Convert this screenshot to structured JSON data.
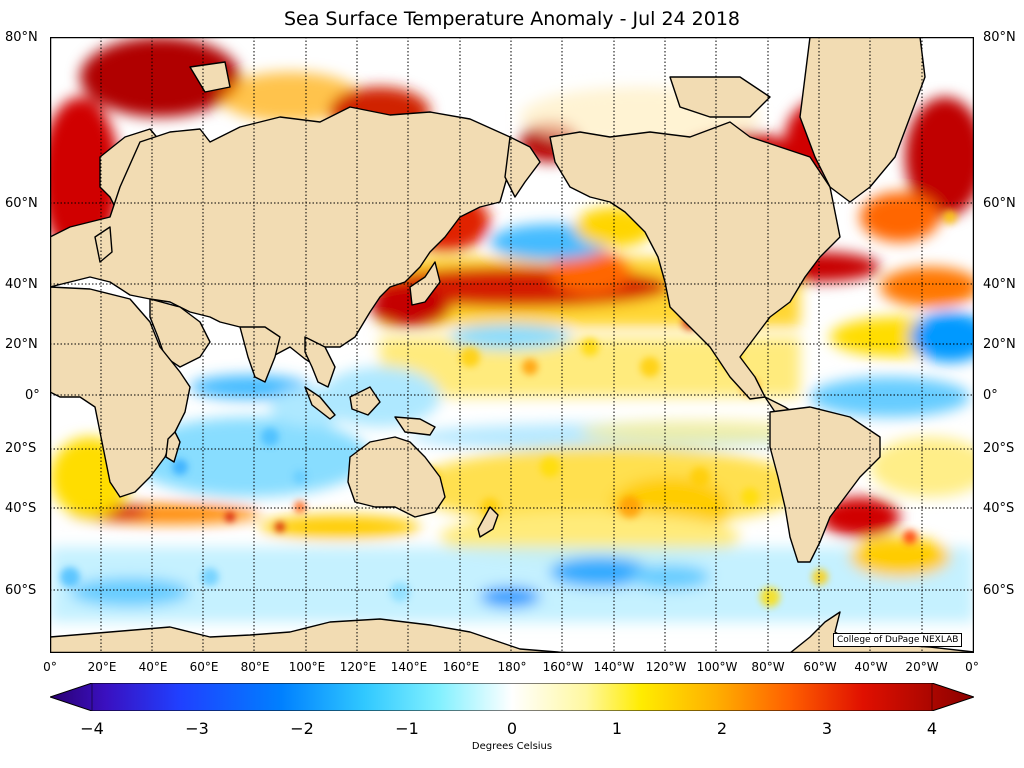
{
  "title": "Sea Surface Temperature Anomaly - Jul 24 2018",
  "credit": "College of DuPage NEXLAB",
  "lat_labels": [
    "80°N",
    "60°N",
    "40°N",
    "20°N",
    "0°",
    "20°S",
    "40°S",
    "60°S"
  ],
  "lon_labels": [
    "0°",
    "20°E",
    "40°E",
    "60°E",
    "80°E",
    "100°E",
    "120°E",
    "140°E",
    "160°E",
    "180°",
    "160°W",
    "140°W",
    "120°W",
    "100°W",
    "80°W",
    "60°W",
    "40°W",
    "20°W",
    "0°"
  ],
  "colorbar": {
    "label": "Degrees Celsius",
    "ticks": [
      "−4",
      "−3",
      "−2",
      "−1",
      "0",
      "1",
      "2",
      "3",
      "4"
    ],
    "range": [
      -4,
      4
    ]
  },
  "colors": {
    "land": "#f2dcb3",
    "coast": "#000000",
    "grid": "#000000",
    "anomaly_warm": "#cc0000",
    "anomaly_hot": "#a00000",
    "anomaly_mild_warm": "#ffd000",
    "anomaly_cool": "#44ccff",
    "anomaly_cold": "#0066ff"
  }
}
